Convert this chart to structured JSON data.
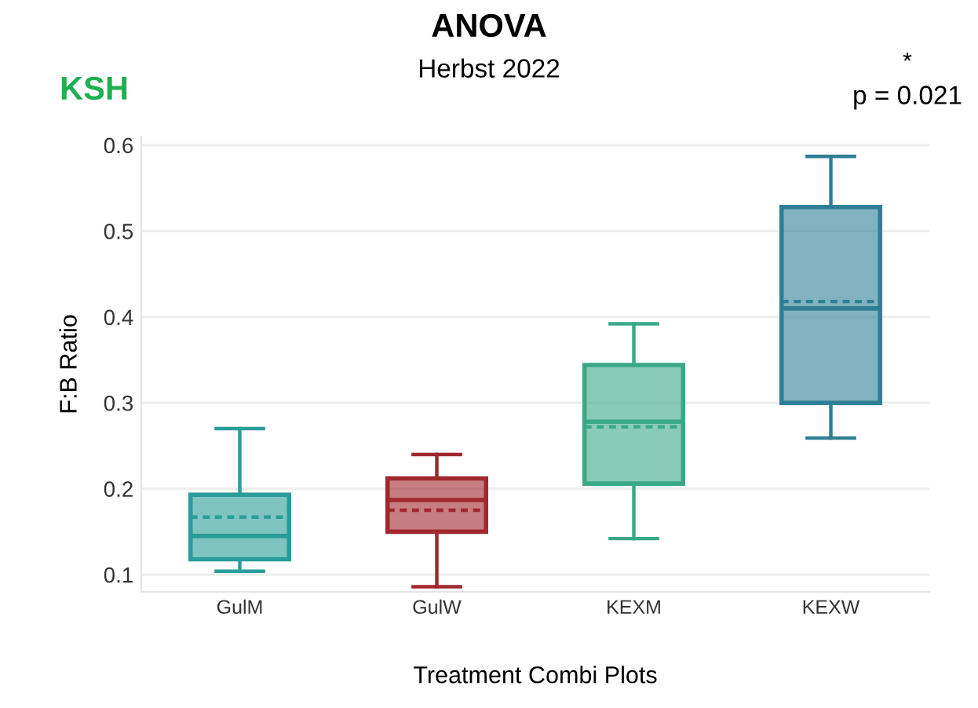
{
  "chart_data": {
    "type": "box",
    "title": "ANOVA",
    "subtitle": "Herbst 2022",
    "xlabel": "Treatment Combi Plots",
    "ylabel": "F:B Ratio",
    "categories": [
      "GulM",
      "GulW",
      "KEXM",
      "KEXW"
    ],
    "boxes": [
      {
        "low": 0.104,
        "q1": 0.118,
        "median": 0.145,
        "q3": 0.193,
        "high": 0.27,
        "mean": 0.167
      },
      {
        "low": 0.086,
        "q1": 0.15,
        "median": 0.187,
        "q3": 0.212,
        "high": 0.24,
        "mean": 0.175
      },
      {
        "low": 0.142,
        "q1": 0.206,
        "median": 0.278,
        "q3": 0.344,
        "high": 0.392,
        "mean": 0.272
      },
      {
        "low": 0.259,
        "q1": 0.3,
        "median": 0.41,
        "q3": 0.528,
        "high": 0.587,
        "mean": 0.418
      }
    ],
    "colors": [
      "#2a9d98",
      "#a0282e",
      "#3aa887",
      "#2e7f95"
    ],
    "ylim": [
      0.08,
      0.61
    ],
    "yticks": [
      0.1,
      0.2,
      0.3,
      0.4,
      0.5,
      0.6
    ],
    "grid": "y",
    "annotations": [
      "KSH",
      "*",
      "p = 0.021"
    ]
  }
}
